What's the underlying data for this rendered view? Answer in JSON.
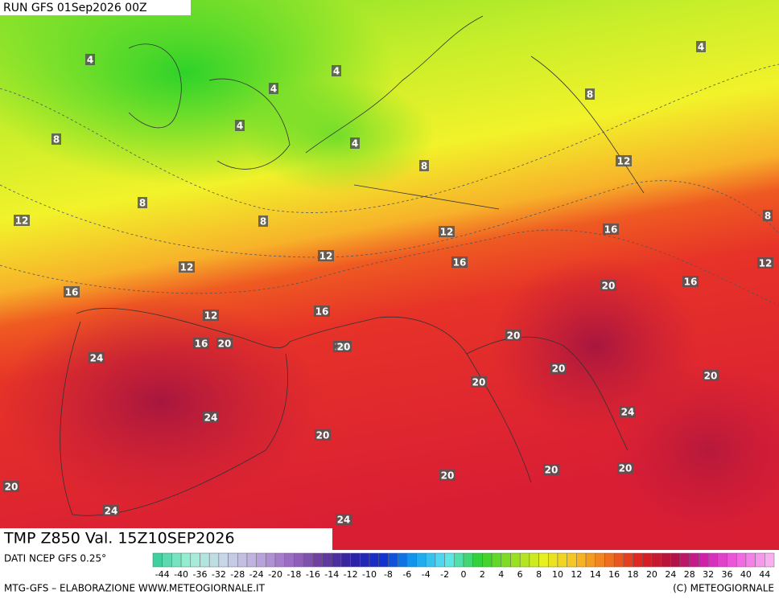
{
  "header": {
    "run": "RUN GFS 01Sep2026 00Z"
  },
  "map": {
    "contour_labels": [
      4,
      4,
      4,
      4,
      4,
      4,
      8,
      8,
      8,
      8,
      8,
      8,
      12,
      12,
      12,
      12,
      12,
      12,
      12,
      16,
      16,
      16,
      16,
      16,
      16,
      20,
      20,
      20,
      20,
      20,
      20,
      20,
      20,
      20,
      20,
      20,
      20,
      20,
      24,
      24,
      24,
      24,
      24
    ]
  },
  "footer": {
    "field": "TMP Z850 Val. 15Z10SEP2026",
    "source": "DATI NCEP GFS 0.25°",
    "credit": "MTG-GFS – ELABORAZIONE WWW.METEOGIORNALE.IT",
    "copyright": "(C) METEOGIORNALE"
  },
  "color_scale": {
    "ticks": [
      -44,
      -40,
      -36,
      -32,
      -28,
      -24,
      -20,
      -18,
      -16,
      -14,
      -12,
      -10,
      -8,
      -6,
      -4,
      -2,
      0,
      2,
      4,
      6,
      8,
      10,
      12,
      14,
      16,
      18,
      20,
      24,
      28,
      32,
      36,
      40,
      44
    ]
  }
}
